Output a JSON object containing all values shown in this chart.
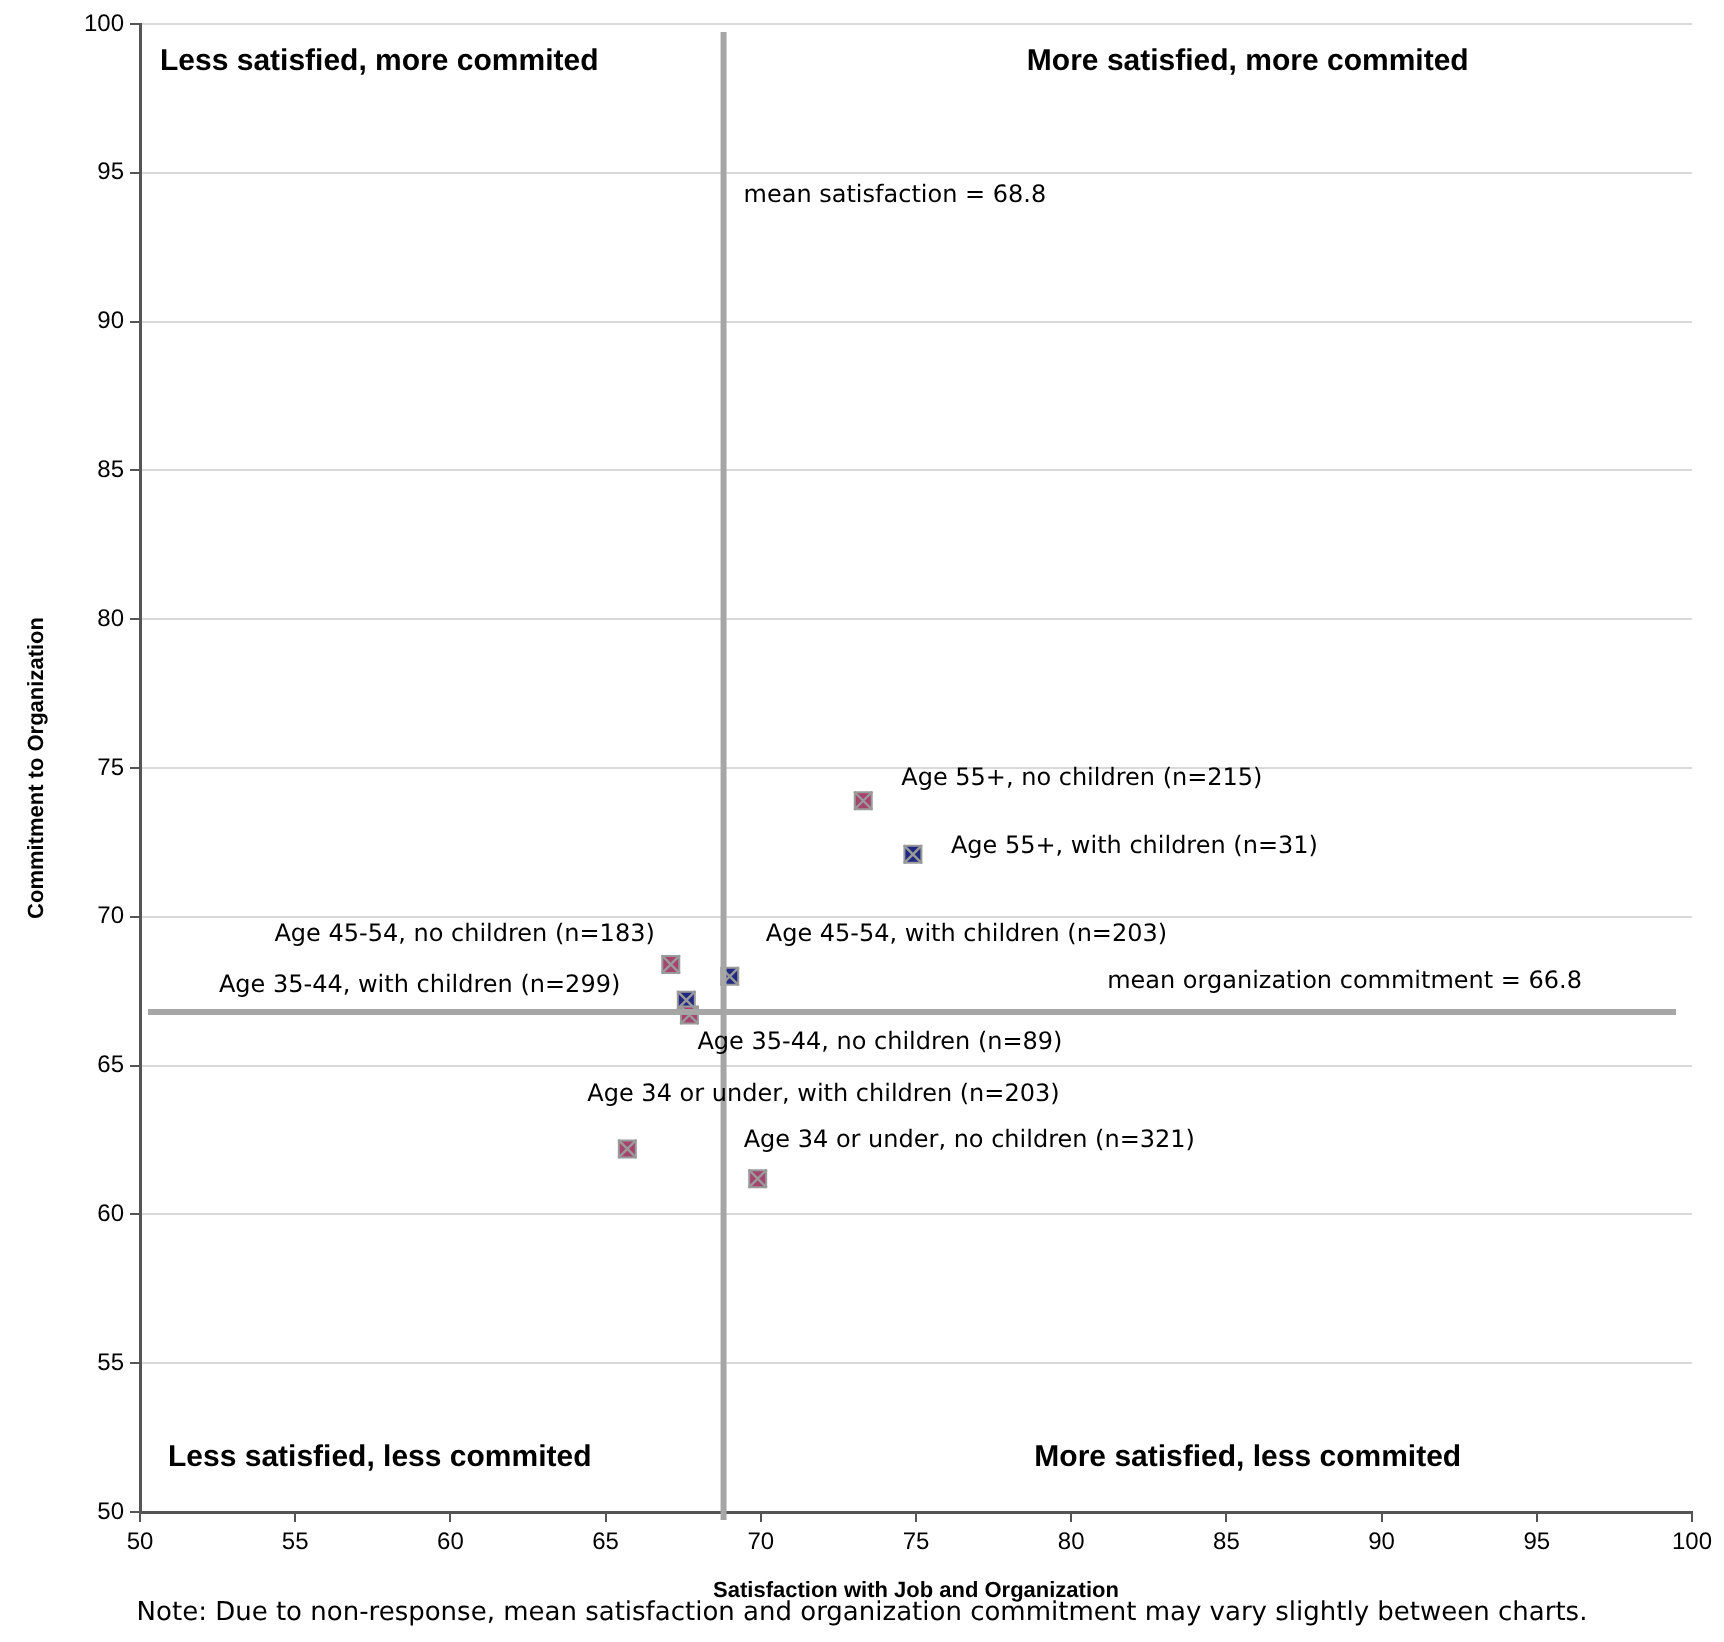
{
  "chart_data": {
    "type": "scatter",
    "xlabel": "Satisfaction with Job and Organization",
    "ylabel": "Commitment to Organization",
    "xlim": [
      50,
      100
    ],
    "xticks": [
      50,
      55,
      60,
      65,
      70,
      75,
      80,
      85,
      90,
      95,
      100
    ],
    "ylim": [
      50,
      100
    ],
    "yticks": [
      50,
      55,
      60,
      65,
      70,
      75,
      80,
      85,
      90,
      95,
      100
    ],
    "grid": "y",
    "legend": false,
    "marker": "square",
    "series": [
      {
        "x": [
          73.3,
          74.9,
          69.0,
          67.1,
          67.6,
          67.7,
          65.7,
          69.9
        ],
        "values": [
          73.9,
          72.1,
          68.0,
          68.4,
          67.2,
          66.7,
          62.2,
          61.2
        ],
        "colors": [
          "#a5456f",
          "#1f2a80",
          "#1f2a80",
          "#a5456f",
          "#1f2a80",
          "#a5456f",
          "#a5456f",
          "#a5456f"
        ]
      }
    ],
    "ref_lines": [
      {
        "axis": "x",
        "value": 68.8,
        "label": "mean satisfaction = 68.8",
        "color": "#a6a6a6"
      },
      {
        "axis": "y",
        "value": 66.8,
        "label": "mean organization commitment = 66.8",
        "color": "#a6a6a6"
      }
    ],
    "annotations": [
      "Less satisfied, more commited",
      "More satisfied, more commited",
      "Less satisfied, less commited",
      "More satisfied, less commited",
      {
        "text": "Age 55+, no children (n=215)",
        "x": 73.3,
        "y": 73.9
      },
      {
        "text": "Age 55+, with children (n=31)",
        "x": 74.9,
        "y": 72.1
      },
      {
        "text": "Age 45-54, with children (n=203)",
        "x": 69.0,
        "y": 68.0
      },
      {
        "text": "Age 45-54, no children (n=183)",
        "x": 67.1,
        "y": 68.4
      },
      {
        "text": "Age 35-44, with children (n=299)",
        "x": 67.6,
        "y": 67.2
      },
      {
        "text": "Age 35-44, no children (n=89)",
        "x": 67.7,
        "y": 66.7
      },
      {
        "text": "Age 34 or under, with children (n=203)",
        "x": 65.7,
        "y": 62.2
      },
      {
        "text": "Age 34 or under, no children (n=321)",
        "x": 69.9,
        "y": 61.2
      },
      "Note: Due to non-response, mean satisfaction and organization commitment may vary slightly between charts."
    ]
  }
}
